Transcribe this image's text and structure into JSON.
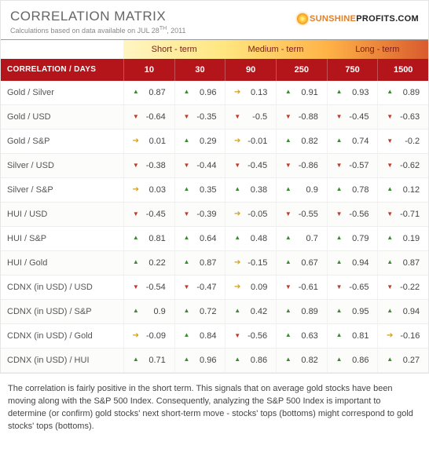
{
  "header": {
    "title": "CORRELATION MATRIX",
    "subtitle_prefix": "Calculations based on data available on ",
    "date_main": "JUL 28",
    "date_suffix": "TH",
    "date_year": ", 2011",
    "logo_sunshine": "SUNSHINE",
    "logo_profits": "PROFITS",
    "logo_dotcom": ".COM"
  },
  "terms": [
    {
      "label": "Short - term",
      "class": "term-short",
      "span": 2
    },
    {
      "label": "Medium - term",
      "class": "term-medium",
      "span": 2
    },
    {
      "label": "Long - term",
      "class": "term-long",
      "span": 2
    }
  ],
  "days_label": "CORRELATION / DAYS",
  "days": [
    "10",
    "30",
    "90",
    "250",
    "750",
    "1500"
  ],
  "rows": [
    {
      "label": "Gold / Silver",
      "cells": [
        {
          "dir": "up",
          "val": "0.87"
        },
        {
          "dir": "up",
          "val": "0.96"
        },
        {
          "dir": "flat",
          "val": "0.13"
        },
        {
          "dir": "up",
          "val": "0.91"
        },
        {
          "dir": "up",
          "val": "0.93"
        },
        {
          "dir": "up",
          "val": "0.89"
        }
      ]
    },
    {
      "label": "Gold / USD",
      "cells": [
        {
          "dir": "down",
          "val": "-0.64"
        },
        {
          "dir": "down",
          "val": "-0.35"
        },
        {
          "dir": "down",
          "val": "-0.5"
        },
        {
          "dir": "down",
          "val": "-0.88"
        },
        {
          "dir": "down",
          "val": "-0.45"
        },
        {
          "dir": "down",
          "val": "-0.63"
        }
      ]
    },
    {
      "label": "Gold / S&P",
      "cells": [
        {
          "dir": "flat",
          "val": "0.01"
        },
        {
          "dir": "up",
          "val": "0.29"
        },
        {
          "dir": "flat",
          "val": "-0.01"
        },
        {
          "dir": "up",
          "val": "0.82"
        },
        {
          "dir": "up",
          "val": "0.74"
        },
        {
          "dir": "down",
          "val": "-0.2"
        }
      ]
    },
    {
      "label": "Silver / USD",
      "cells": [
        {
          "dir": "down",
          "val": "-0.38"
        },
        {
          "dir": "down",
          "val": "-0.44"
        },
        {
          "dir": "down",
          "val": "-0.45"
        },
        {
          "dir": "down",
          "val": "-0.86"
        },
        {
          "dir": "down",
          "val": "-0.57"
        },
        {
          "dir": "down",
          "val": "-0.62"
        }
      ]
    },
    {
      "label": "Silver / S&P",
      "cells": [
        {
          "dir": "flat",
          "val": "0.03"
        },
        {
          "dir": "up",
          "val": "0.35"
        },
        {
          "dir": "up",
          "val": "0.38"
        },
        {
          "dir": "up",
          "val": "0.9"
        },
        {
          "dir": "up",
          "val": "0.78"
        },
        {
          "dir": "up",
          "val": "0.12"
        }
      ]
    },
    {
      "label": "HUI / USD",
      "cells": [
        {
          "dir": "down",
          "val": "-0.45"
        },
        {
          "dir": "down",
          "val": "-0.39"
        },
        {
          "dir": "flat",
          "val": "-0.05"
        },
        {
          "dir": "down",
          "val": "-0.55"
        },
        {
          "dir": "down",
          "val": "-0.56"
        },
        {
          "dir": "down",
          "val": "-0.71"
        }
      ]
    },
    {
      "label": "HUI / S&P",
      "cells": [
        {
          "dir": "up",
          "val": "0.81"
        },
        {
          "dir": "up",
          "val": "0.64"
        },
        {
          "dir": "up",
          "val": "0.48"
        },
        {
          "dir": "up",
          "val": "0.7"
        },
        {
          "dir": "up",
          "val": "0.79"
        },
        {
          "dir": "up",
          "val": "0.19"
        }
      ]
    },
    {
      "label": "HUI / Gold",
      "cells": [
        {
          "dir": "up",
          "val": "0.22"
        },
        {
          "dir": "up",
          "val": "0.87"
        },
        {
          "dir": "flat",
          "val": "-0.15"
        },
        {
          "dir": "up",
          "val": "0.67"
        },
        {
          "dir": "up",
          "val": "0.94"
        },
        {
          "dir": "up",
          "val": "0.87"
        }
      ]
    },
    {
      "label": "CDNX (in USD) / USD",
      "cells": [
        {
          "dir": "down",
          "val": "-0.54"
        },
        {
          "dir": "down",
          "val": "-0.47"
        },
        {
          "dir": "flat",
          "val": "0.09"
        },
        {
          "dir": "down",
          "val": "-0.61"
        },
        {
          "dir": "down",
          "val": "-0.65"
        },
        {
          "dir": "down",
          "val": "-0.22"
        }
      ]
    },
    {
      "label": "CDNX (in USD) / S&P",
      "cells": [
        {
          "dir": "up",
          "val": "0.9"
        },
        {
          "dir": "up",
          "val": "0.72"
        },
        {
          "dir": "up",
          "val": "0.42"
        },
        {
          "dir": "up",
          "val": "0.89"
        },
        {
          "dir": "up",
          "val": "0.95"
        },
        {
          "dir": "up",
          "val": "0.94"
        }
      ]
    },
    {
      "label": "CDNX (in USD) / Gold",
      "cells": [
        {
          "dir": "flat",
          "val": "-0.09"
        },
        {
          "dir": "up",
          "val": "0.84"
        },
        {
          "dir": "down",
          "val": "-0.56"
        },
        {
          "dir": "up",
          "val": "0.63"
        },
        {
          "dir": "up",
          "val": "0.81"
        },
        {
          "dir": "flat",
          "val": "-0.16"
        }
      ]
    },
    {
      "label": "CDNX (in USD) / HUI",
      "cells": [
        {
          "dir": "up",
          "val": "0.71"
        },
        {
          "dir": "up",
          "val": "0.96"
        },
        {
          "dir": "up",
          "val": "0.86"
        },
        {
          "dir": "up",
          "val": "0.82"
        },
        {
          "dir": "up",
          "val": "0.86"
        },
        {
          "dir": "up",
          "val": "0.27"
        }
      ]
    }
  ],
  "caption": "The correlation is fairly positive in the short term. This signals that on average gold stocks have been moving along with the S&P 500 Index. Consequently, analyzing the S&P 500 Index is important to determine (or confirm) gold stocks' next short-term move - stocks' tops (bottoms) might correspond to gold stocks' tops (bottoms)."
}
